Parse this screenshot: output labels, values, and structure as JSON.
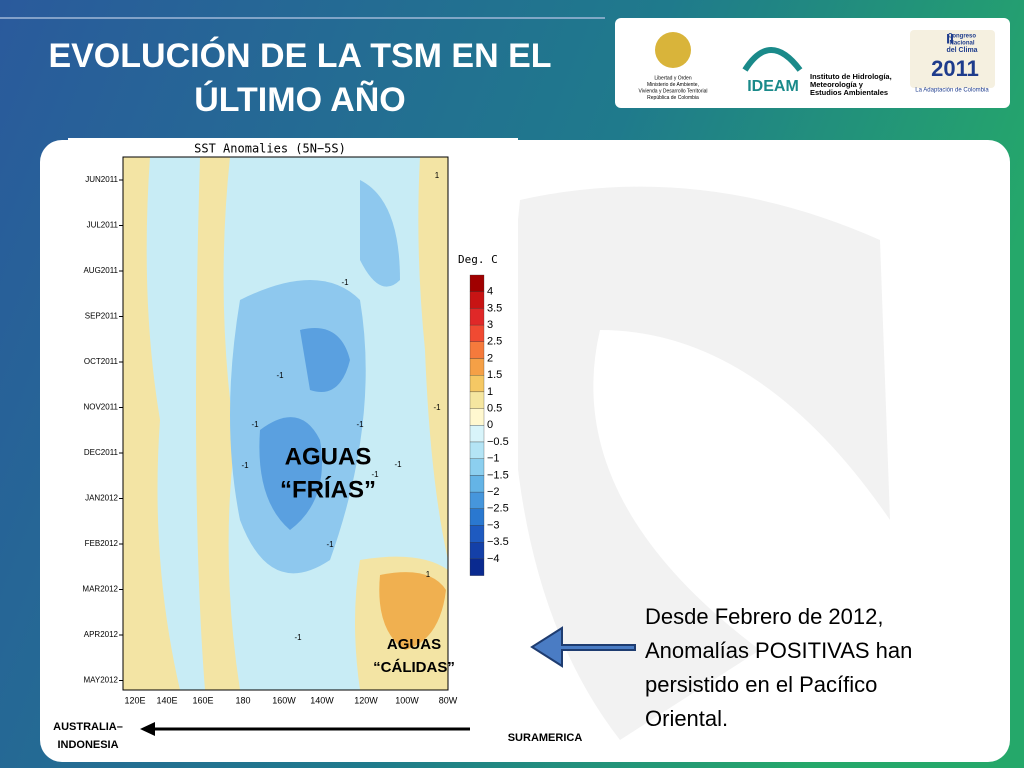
{
  "header": {
    "title_lines": [
      "EVOLUCIÓN DE LA TSM EN EL",
      "ÚLTIMO AÑO"
    ]
  },
  "logos": {
    "ministry": [
      "Libertad y Orden",
      "Ministerio de Ambiente,",
      "Vivienda y Desarrollo Territorial",
      "República de Colombia"
    ],
    "ideam": {
      "name": "IDEAM",
      "lines": [
        "Instituto de Hidrología,",
        "Meteorología y",
        "Estudios Ambientales"
      ]
    },
    "congress": {
      "lines": [
        "II",
        "Congreso",
        "Nacional",
        "del Clima",
        "2011"
      ],
      "tagline": "La Adaptación de Colombia"
    }
  },
  "plot": {
    "title": "SST Anomalies (5N−5S)",
    "y_labels": [
      "JUN2011",
      "JUL2011",
      "AUG2011",
      "SEP2011",
      "OCT2011",
      "NOV2011",
      "DEC2011",
      "JAN2012",
      "FEB2012",
      "MAR2012",
      "APR2012",
      "MAY2012"
    ],
    "x_labels": [
      "120E",
      "140E",
      "160E",
      "180",
      "160W",
      "140W",
      "120W",
      "100W",
      "80W"
    ],
    "contour_labels": [
      "-1",
      "-1",
      "-1",
      "-1",
      "-1",
      "-1",
      "-1",
      "-1",
      "-1",
      "-1",
      "1",
      "1"
    ],
    "colorbar": {
      "title": "Deg. C",
      "labels": [
        "4",
        "3.5",
        "3",
        "2.5",
        "2",
        "1.5",
        "1",
        "0.5",
        "0",
        "−0.5",
        "−1",
        "−1.5",
        "−2",
        "−2.5",
        "−3",
        "−3.5",
        "−4"
      ]
    }
  },
  "annotations": {
    "cold": [
      "AGUAS",
      "“FRÍAS”"
    ],
    "warm": [
      "AGUAS",
      "“CÁLIDAS”"
    ]
  },
  "textbox": [
    "Desde Febrero de 2012,",
    "Anomalías POSITIVAS han",
    "persistido  en el Pacífico",
    "Oriental."
  ],
  "bottom": {
    "west": [
      "AUSTRALIA–",
      "INDONESIA"
    ],
    "east": "SURAMERICA"
  }
}
